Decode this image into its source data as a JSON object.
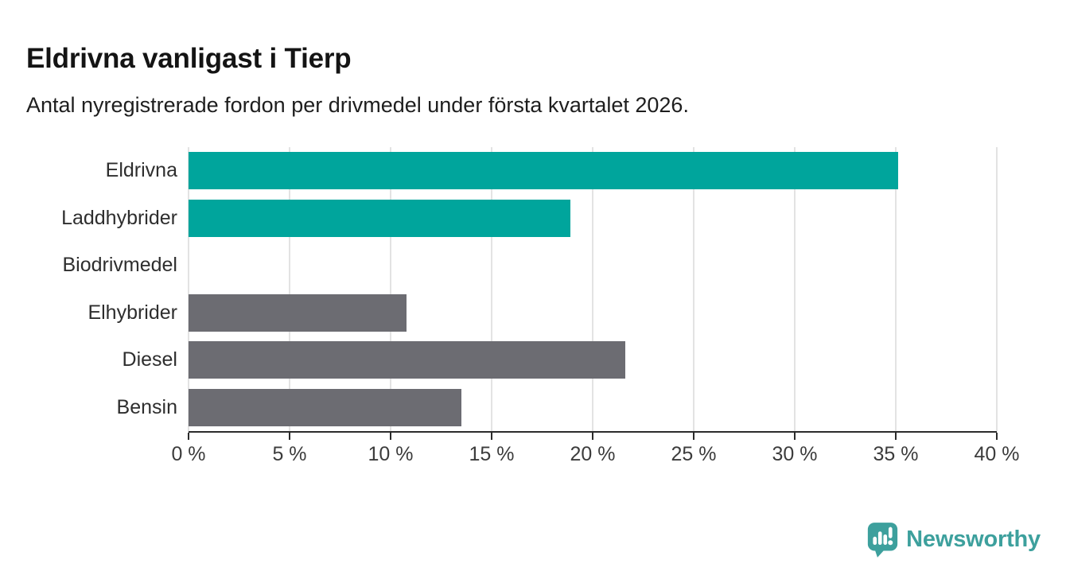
{
  "page": {
    "background": "#ffffff"
  },
  "header": {
    "title": "Eldrivna vanligast i Tierp",
    "subtitle": "Antal nyregistrerade fordon per drivmedel under första kvartalet 2026."
  },
  "chart_data": {
    "type": "bar",
    "orientation": "horizontal",
    "title": "Eldrivna vanligast i Tierp",
    "subtitle": "Antal nyregistrerade fordon per drivmedel under första kvartalet 2026.",
    "categories": [
      "Eldrivna",
      "Laddhybrider",
      "Biodrivmedel",
      "Elhybrider",
      "Diesel",
      "Bensin"
    ],
    "values": [
      35.1,
      18.9,
      0,
      10.8,
      21.6,
      13.5
    ],
    "unit": "%",
    "bar_colors": [
      "#00a59c",
      "#00a59c",
      "#6c6c72",
      "#6c6c72",
      "#6c6c72",
      "#6c6c72"
    ],
    "xlim": [
      0,
      40
    ],
    "x_tick_labels": [
      "0 %",
      "5 %",
      "10 %",
      "15 %",
      "20 %",
      "25 %",
      "30 %",
      "35 %",
      "40 %"
    ],
    "grid": true,
    "legend": "none",
    "colors": {
      "highlight": "#00a59c",
      "muted": "#6c6c72",
      "gridline": "#e3e3e3",
      "axis": "#2b2b2b"
    }
  },
  "branding": {
    "logo_icon": "newsworthy-bar-chart-bubble-icon",
    "logo_text": "Newsworthy",
    "color": "#3da09d"
  }
}
